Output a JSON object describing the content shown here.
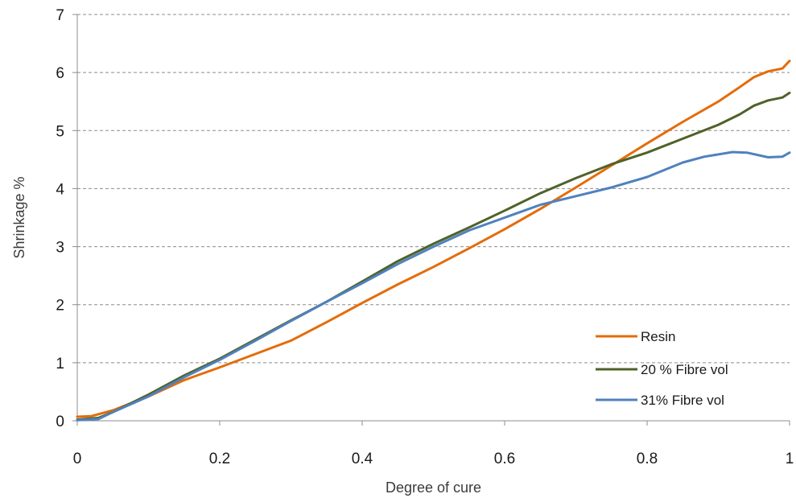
{
  "chart_data": {
    "type": "line",
    "title": "",
    "xlabel": "Degree of cure",
    "ylabel": "Shrinkage %",
    "xlim": [
      0,
      1
    ],
    "ylim": [
      0,
      7
    ],
    "xticks": [
      "0",
      "0.2",
      "0.4",
      "0.6",
      "0.8",
      "1"
    ],
    "yticks": [
      "0",
      "1",
      "2",
      "3",
      "4",
      "5",
      "6",
      "7"
    ],
    "grid": "horizontal-dashed",
    "legend_position": "bottom-right",
    "series": [
      {
        "name": "Resin",
        "color": "#e46c0a",
        "points": [
          [
            0,
            0.07
          ],
          [
            0.02,
            0.08
          ],
          [
            0.05,
            0.18
          ],
          [
            0.1,
            0.42
          ],
          [
            0.15,
            0.7
          ],
          [
            0.2,
            0.92
          ],
          [
            0.25,
            1.15
          ],
          [
            0.3,
            1.38
          ],
          [
            0.35,
            1.7
          ],
          [
            0.4,
            2.03
          ],
          [
            0.45,
            2.35
          ],
          [
            0.5,
            2.65
          ],
          [
            0.55,
            2.97
          ],
          [
            0.6,
            3.3
          ],
          [
            0.65,
            3.65
          ],
          [
            0.7,
            4.02
          ],
          [
            0.75,
            4.4
          ],
          [
            0.8,
            4.78
          ],
          [
            0.85,
            5.15
          ],
          [
            0.9,
            5.5
          ],
          [
            0.93,
            5.75
          ],
          [
            0.95,
            5.92
          ],
          [
            0.97,
            6.02
          ],
          [
            0.99,
            6.07
          ],
          [
            1.0,
            6.2
          ]
        ]
      },
      {
        "name": "20 % Fibre vol",
        "color": "#4f6228",
        "points": [
          [
            0,
            0.02
          ],
          [
            0.03,
            0.05
          ],
          [
            0.05,
            0.15
          ],
          [
            0.1,
            0.45
          ],
          [
            0.15,
            0.78
          ],
          [
            0.2,
            1.07
          ],
          [
            0.25,
            1.4
          ],
          [
            0.3,
            1.73
          ],
          [
            0.35,
            2.05
          ],
          [
            0.4,
            2.4
          ],
          [
            0.45,
            2.75
          ],
          [
            0.5,
            3.05
          ],
          [
            0.55,
            3.33
          ],
          [
            0.6,
            3.62
          ],
          [
            0.65,
            3.92
          ],
          [
            0.7,
            4.18
          ],
          [
            0.75,
            4.42
          ],
          [
            0.8,
            4.62
          ],
          [
            0.85,
            4.86
          ],
          [
            0.9,
            5.1
          ],
          [
            0.93,
            5.28
          ],
          [
            0.95,
            5.43
          ],
          [
            0.97,
            5.52
          ],
          [
            0.99,
            5.57
          ],
          [
            1.0,
            5.65
          ]
        ]
      },
      {
        "name": "31% Fibre vol",
        "color": "#4f81bd",
        "points": [
          [
            0,
            0.01
          ],
          [
            0.03,
            0.03
          ],
          [
            0.05,
            0.15
          ],
          [
            0.1,
            0.42
          ],
          [
            0.15,
            0.75
          ],
          [
            0.2,
            1.05
          ],
          [
            0.25,
            1.38
          ],
          [
            0.3,
            1.72
          ],
          [
            0.35,
            2.05
          ],
          [
            0.4,
            2.37
          ],
          [
            0.45,
            2.7
          ],
          [
            0.5,
            3.0
          ],
          [
            0.55,
            3.28
          ],
          [
            0.6,
            3.5
          ],
          [
            0.65,
            3.72
          ],
          [
            0.7,
            3.87
          ],
          [
            0.75,
            4.02
          ],
          [
            0.8,
            4.2
          ],
          [
            0.85,
            4.45
          ],
          [
            0.88,
            4.55
          ],
          [
            0.92,
            4.63
          ],
          [
            0.94,
            4.62
          ],
          [
            0.97,
            4.54
          ],
          [
            0.99,
            4.55
          ],
          [
            1.0,
            4.62
          ]
        ]
      }
    ]
  }
}
